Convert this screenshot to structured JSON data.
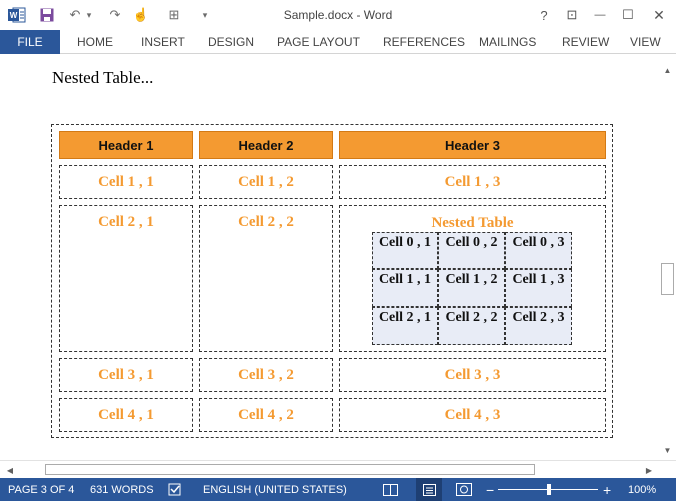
{
  "titlebar": {
    "title": "Sample.docx - Word",
    "app_icon": "W",
    "save_icon": "save-icon",
    "undo_glyph": "↶",
    "undo_dropdown": "▾",
    "redo_glyph": "↷",
    "touch_glyph": "☝",
    "table_glyph": "⊞",
    "customize_glyph": "▾",
    "help": "?",
    "restore_ribbon": "⊡",
    "minimize": "—",
    "maximize": "☐",
    "close": "✕"
  },
  "ribbon": {
    "file": "FILE",
    "tabs": [
      "HOME",
      "INSERT",
      "DESIGN",
      "PAGE LAYOUT",
      "REFERENCES",
      "MAILINGS",
      "REVIEW",
      "VIEW"
    ]
  },
  "document": {
    "heading": "Nested Table...",
    "table": {
      "headers": [
        "Header 1",
        "Header 2",
        "Header 3"
      ],
      "rows": [
        [
          "Cell 1 , 1",
          "Cell 1 , 2",
          "Cell 1 , 3"
        ],
        [
          "Cell 2 , 1",
          "Cell 2 , 2",
          "Nested Table"
        ],
        [
          "Cell 3 , 1",
          "Cell 3 , 2",
          "Cell 3 , 3"
        ],
        [
          "Cell 4 , 1",
          "Cell 4 , 2",
          "Cell 4 , 3"
        ]
      ],
      "nested": [
        [
          "Cell 0 , 1",
          "Cell 0 , 2",
          "Cell 0 , 3"
        ],
        [
          "Cell 1 , 1",
          "Cell 1 , 2",
          "Cell 1 , 3"
        ],
        [
          "Cell 2 , 1",
          "Cell 2 , 2",
          "Cell 2 , 3"
        ]
      ]
    }
  },
  "scrollbar": {
    "up": "▲",
    "down": "▼",
    "left": "◀",
    "right": "▶"
  },
  "status": {
    "page": "PAGE 3 OF 4",
    "words": "631 WORDS",
    "proof_icon": "proofing-icon",
    "language": "ENGLISH (UNITED STATES)",
    "zoom_minus": "−",
    "zoom_plus": "+",
    "zoom": "100%"
  },
  "colors": {
    "accent": "#2b579a",
    "header_fill": "#f49a31",
    "cell_text": "#f49a31",
    "nested_fill": "#e8ecf6"
  }
}
